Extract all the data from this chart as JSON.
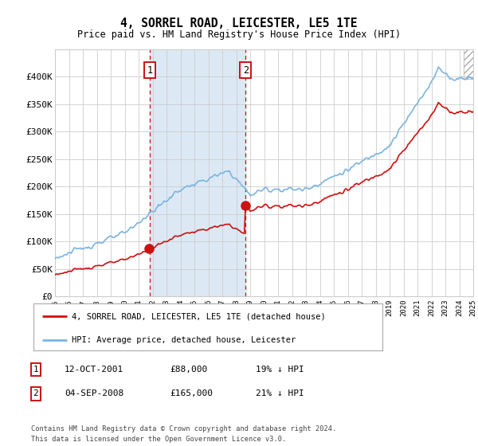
{
  "title": "4, SORREL ROAD, LEICESTER, LE5 1TE",
  "subtitle": "Price paid vs. HM Land Registry's House Price Index (HPI)",
  "ylim": [
    0,
    450000
  ],
  "yticks": [
    0,
    50000,
    100000,
    150000,
    200000,
    250000,
    300000,
    350000,
    400000
  ],
  "ytick_labels": [
    "£0",
    "£50K",
    "£100K",
    "£150K",
    "£200K",
    "£250K",
    "£300K",
    "£350K",
    "£400K"
  ],
  "hpi_color": "#7BB4E0",
  "price_color": "#CC1111",
  "vline_color": "#CC1111",
  "shade_color": "#DCE9F5",
  "grid_color": "#CCCCCC",
  "background_color": "#FFFFFF",
  "sale1_year": 2001.79,
  "sale1_price": 88000,
  "sale2_year": 2008.67,
  "sale2_price": 165000,
  "legend_entries": [
    "4, SORREL ROAD, LEICESTER, LE5 1TE (detached house)",
    "HPI: Average price, detached house, Leicester"
  ],
  "table_entries": [
    {
      "num": "1",
      "date": "12-OCT-2001",
      "price": "£88,000",
      "hpi": "19% ↓ HPI"
    },
    {
      "num": "2",
      "date": "04-SEP-2008",
      "price": "£165,000",
      "hpi": "21% ↓ HPI"
    }
  ],
  "footnote": "Contains HM Land Registry data © Crown copyright and database right 2024.\nThis data is licensed under the Open Government Licence v3.0.",
  "xstart": 1995,
  "xend": 2025
}
